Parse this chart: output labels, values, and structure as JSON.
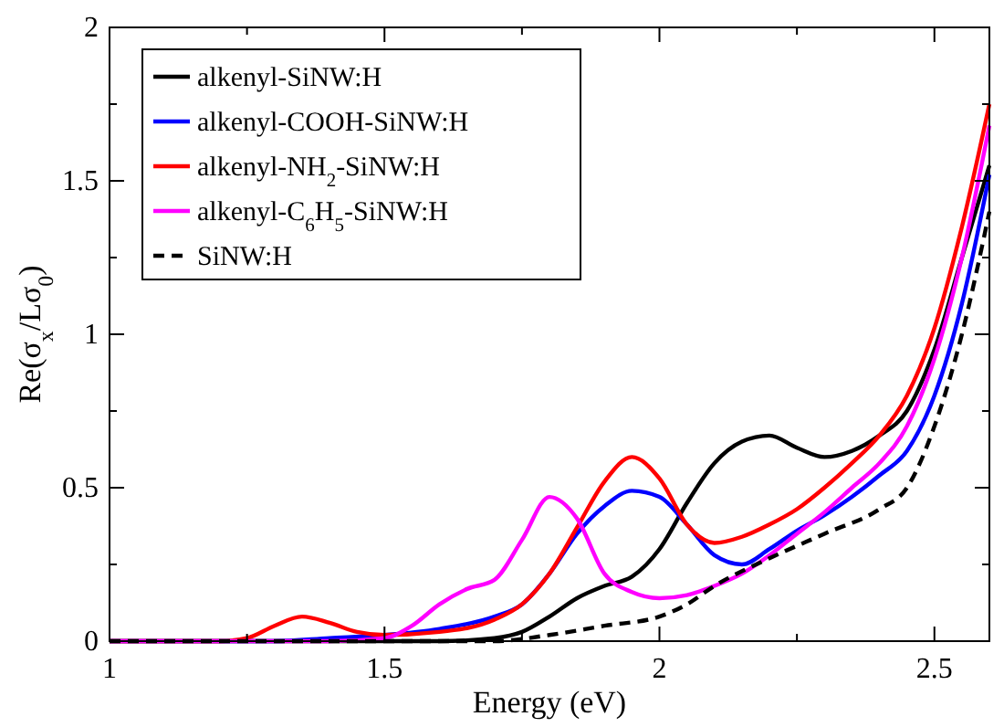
{
  "chart_data": {
    "type": "line",
    "xlabel": "Energy (eV)",
    "ylabel": "Re(σ$_{x}$/Lσ$_{0}$)",
    "xlim": [
      1,
      2.6
    ],
    "ylim": [
      0,
      2
    ],
    "xticks": [
      1,
      {
        "value": 1.25,
        "label": null
      },
      1.5,
      {
        "value": 1.75,
        "label": null
      },
      2,
      {
        "value": 2.25,
        "label": null
      },
      2.5
    ],
    "yticks": [
      0,
      {
        "value": 0.25,
        "label": null
      },
      0.5,
      {
        "value": 0.75,
        "label": null
      },
      1,
      {
        "value": 1.25,
        "label": null
      },
      1.5,
      {
        "value": 1.75,
        "label": null
      },
      2
    ],
    "grid": false,
    "legend": "top left",
    "marker": "none",
    "series": [
      {
        "name": "alkenyl-SiNW:H",
        "color": "#000000",
        "line_style": "solid",
        "x": [
          1,
          1.3,
          1.6,
          1.7,
          1.75,
          1.8,
          1.85,
          1.9,
          1.95,
          2.0,
          2.05,
          2.1,
          2.15,
          2.2,
          2.25,
          2.3,
          2.35,
          2.4,
          2.45,
          2.5,
          2.55,
          2.6
        ],
        "values": [
          0,
          0,
          0,
          0.01,
          0.03,
          0.08,
          0.14,
          0.18,
          0.21,
          0.3,
          0.45,
          0.58,
          0.65,
          0.67,
          0.63,
          0.6,
          0.62,
          0.67,
          0.75,
          0.95,
          1.25,
          1.55
        ]
      },
      {
        "name": "alkenyl-COOH-SiNW:H",
        "color": "#0000ff",
        "line_style": "solid",
        "x": [
          1,
          1.3,
          1.4,
          1.5,
          1.6,
          1.7,
          1.75,
          1.8,
          1.85,
          1.9,
          1.95,
          2.0,
          2.05,
          2.1,
          2.15,
          2.2,
          2.25,
          2.3,
          2.35,
          2.4,
          2.45,
          2.5,
          2.55,
          2.6
        ],
        "values": [
          0,
          0,
          0.01,
          0.02,
          0.04,
          0.08,
          0.12,
          0.22,
          0.35,
          0.44,
          0.49,
          0.47,
          0.38,
          0.28,
          0.25,
          0.3,
          0.36,
          0.41,
          0.47,
          0.54,
          0.62,
          0.8,
          1.1,
          1.52
        ]
      },
      {
        "name": "alkenyl-NH$_{2}$-SiNW:H",
        "color": "#ff0000",
        "line_style": "solid",
        "x": [
          1,
          1.2,
          1.25,
          1.3,
          1.35,
          1.4,
          1.45,
          1.5,
          1.6,
          1.7,
          1.75,
          1.8,
          1.85,
          1.9,
          1.95,
          2.0,
          2.05,
          2.1,
          2.15,
          2.2,
          2.25,
          2.3,
          2.35,
          2.4,
          2.45,
          2.5,
          2.55,
          2.6
        ],
        "values": [
          0,
          0,
          0.01,
          0.05,
          0.08,
          0.06,
          0.03,
          0.02,
          0.03,
          0.07,
          0.12,
          0.22,
          0.37,
          0.52,
          0.6,
          0.53,
          0.38,
          0.32,
          0.34,
          0.38,
          0.43,
          0.5,
          0.58,
          0.67,
          0.8,
          1.02,
          1.35,
          1.75
        ]
      },
      {
        "name": "alkenyl-C$_{6}$H$_{5}$-SiNW:H",
        "color": "#ff00ff",
        "line_style": "solid",
        "x": [
          1,
          1.4,
          1.5,
          1.55,
          1.6,
          1.65,
          1.7,
          1.75,
          1.8,
          1.85,
          1.9,
          1.95,
          2.0,
          2.05,
          2.1,
          2.15,
          2.2,
          2.25,
          2.3,
          2.35,
          2.4,
          2.45,
          2.5,
          2.55,
          2.6
        ],
        "values": [
          0,
          0,
          0.01,
          0.05,
          0.12,
          0.17,
          0.2,
          0.33,
          0.47,
          0.4,
          0.22,
          0.16,
          0.14,
          0.15,
          0.18,
          0.22,
          0.28,
          0.35,
          0.42,
          0.5,
          0.58,
          0.7,
          0.92,
          1.25,
          1.68
        ]
      },
      {
        "name": "SiNW:H",
        "color": "#000000",
        "line_style": "dashed",
        "x": [
          1,
          1.7,
          1.8,
          1.9,
          2.0,
          2.05,
          2.1,
          2.2,
          2.3,
          2.4,
          2.45,
          2.5,
          2.55,
          2.6
        ],
        "values": [
          0,
          0,
          0.02,
          0.05,
          0.08,
          0.12,
          0.18,
          0.27,
          0.35,
          0.43,
          0.5,
          0.7,
          1.0,
          1.4
        ]
      }
    ]
  }
}
